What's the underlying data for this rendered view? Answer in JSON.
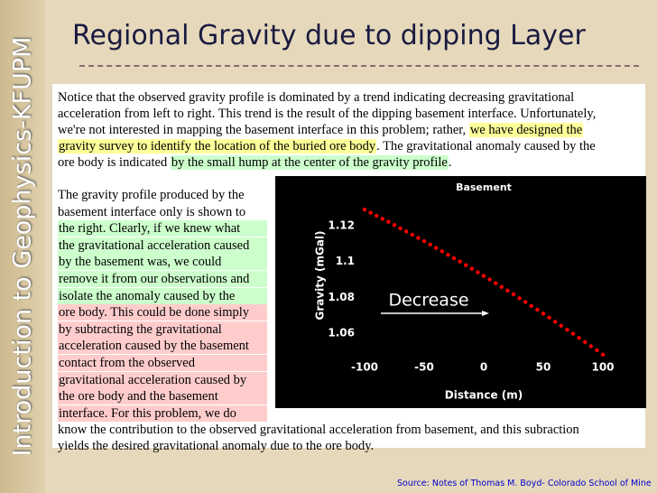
{
  "sidebar": "Introduction to Geophysics-KFUPM",
  "title": "Regional Gravity due to dipping Layer",
  "paragraph1": [
    [
      {
        "text": "Notice that the observed gravity profile is dominated by a trend indicating decreasing gravitational"
      }
    ],
    [
      {
        "text": "acceleration from left to right. This trend is the result of the dipping basement interface. Unfortunately,"
      }
    ],
    [
      {
        "text": "we're not interested in mapping the basement interface in this problem; rather, "
      },
      {
        "text": "we have designed the",
        "highlight": "#ffff99"
      }
    ],
    [
      {
        "text": "gravity survey to identify the location of the buried ore body",
        "highlight": "#ffff99"
      },
      {
        "text": ". The gravitational anomaly caused by the"
      }
    ],
    [
      {
        "text": "ore body is indicated "
      },
      {
        "text": "by the small hump at the center of the gravity profile",
        "highlight": "#ccffcc"
      },
      {
        "text": "."
      }
    ]
  ],
  "paragraph2": [
    {
      "text": "The gravity profile produced by the"
    },
    {
      "text": "basement interface only is shown to"
    },
    {
      "text": "the right. Clearly, if we knew what",
      "highlight": "#ccffcc"
    },
    {
      "text": "the gravitational acceleration caused",
      "highlight": "#ccffcc"
    },
    {
      "text": "by the basement was, we could",
      "highlight": "#ccffcc"
    },
    {
      "text": "remove it from our observations and",
      "highlight": "#ccffcc"
    },
    {
      "text": "isolate the anomaly caused by the",
      "highlight": "#ccffcc"
    },
    {
      "text": "ore body. This could be done simply",
      "highlight": "#ffcccc"
    },
    {
      "text": "by subtracting the gravitational",
      "highlight": "#ffcccc"
    },
    {
      "text": "acceleration caused by the basement",
      "highlight": "#ffcccc"
    },
    {
      "text": "contact from the observed",
      "highlight": "#ffcccc"
    },
    {
      "text": "gravitational acceleration caused by",
      "highlight": "#ffcccc"
    },
    {
      "text": "the ore body and the basement",
      "highlight": "#ffcccc"
    },
    {
      "text": "interface. For this problem, we do",
      "highlight": "#ffcccc"
    }
  ],
  "paragraph3": [
    "know the contribution to the observed gravitational acceleration from basement, and this subraction",
    "yields the desired gravitational anomaly due to the ore body."
  ],
  "source": "Source: Notes of Thomas M. Boyd- Colorado School of Mine",
  "chart_data": {
    "type": "scatter",
    "title": "Basement",
    "x_label": "Distance (m)",
    "y_label": "Gravity (mGal)",
    "annotation": "Decrease",
    "series": [
      {
        "name": "Gravity",
        "color": "#ff0000",
        "x": [
          -100,
          -95,
          -90,
          -85,
          -80,
          -75,
          -70,
          -65,
          -60,
          -55,
          -50,
          -45,
          -40,
          -35,
          -30,
          -25,
          -20,
          -15,
          -10,
          -5,
          0,
          5,
          10,
          15,
          20,
          25,
          30,
          35,
          40,
          45,
          50,
          55,
          60,
          65,
          70,
          75,
          80,
          85,
          90,
          95,
          100
        ],
        "values": [
          1.129,
          1.1273,
          1.1256,
          1.1239,
          1.1222,
          1.1204,
          1.1186,
          1.1168,
          1.115,
          1.1132,
          1.1114,
          1.1095,
          1.1076,
          1.1057,
          1.1038,
          1.1019,
          1.1,
          1.098,
          1.096,
          1.094,
          1.092,
          1.09,
          1.0879,
          1.0858,
          1.0838,
          1.0817,
          1.0795,
          1.0774,
          1.0752,
          1.0731,
          1.0709,
          1.0687,
          1.0664,
          1.0642,
          1.0619,
          1.0597,
          1.0574,
          1.055,
          1.0527,
          1.0504,
          1.048
        ]
      }
    ],
    "xlim": [
      -105,
      105
    ],
    "xticks": [
      -100,
      -50,
      0,
      50,
      100
    ],
    "ylim": [
      1.045,
      1.13
    ],
    "yticks": [
      1.06,
      1.08,
      1.1,
      1.12
    ]
  }
}
